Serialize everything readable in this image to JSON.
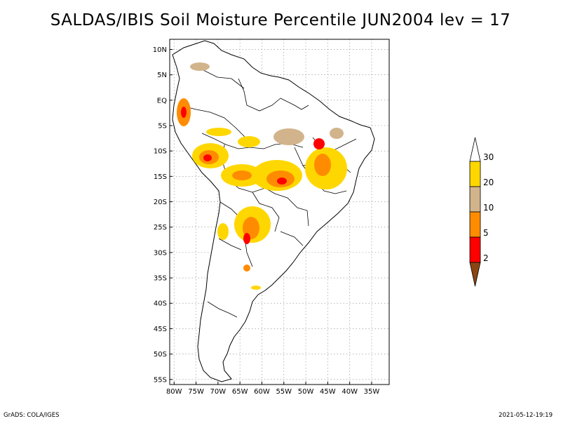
{
  "title": "SALDAS/IBIS Soil Moisture Percentile JUN2004 lev = 17",
  "map": {
    "lat_ticks": [
      {
        "value": 10,
        "label": "10N"
      },
      {
        "value": 5,
        "label": "5N"
      },
      {
        "value": 0,
        "label": "EQ"
      },
      {
        "value": -5,
        "label": "5S"
      },
      {
        "value": -10,
        "label": "10S"
      },
      {
        "value": -15,
        "label": "15S"
      },
      {
        "value": -20,
        "label": "20S"
      },
      {
        "value": -25,
        "label": "25S"
      },
      {
        "value": -30,
        "label": "30S"
      },
      {
        "value": -35,
        "label": "35S"
      },
      {
        "value": -40,
        "label": "40S"
      },
      {
        "value": -45,
        "label": "45S"
      },
      {
        "value": -50,
        "label": "50S"
      },
      {
        "value": -55,
        "label": "55S"
      }
    ],
    "lon_ticks": [
      {
        "value": -80,
        "label": "80W"
      },
      {
        "value": -75,
        "label": "75W"
      },
      {
        "value": -70,
        "label": "70W"
      },
      {
        "value": -65,
        "label": "65W"
      },
      {
        "value": -60,
        "label": "60W"
      },
      {
        "value": -55,
        "label": "55W"
      },
      {
        "value": -50,
        "label": "50W"
      },
      {
        "value": -45,
        "label": "45W"
      },
      {
        "value": -40,
        "label": "40W"
      },
      {
        "value": -35,
        "label": "35W"
      }
    ],
    "lat_range": [
      -56,
      12
    ],
    "lon_range": [
      -81,
      -31
    ],
    "grid": true
  },
  "colorbar": {
    "bins": [
      {
        "color": "#8B4513",
        "shape": "triangle-down",
        "label": ""
      },
      {
        "color": "#FF0000",
        "shape": "box",
        "label": "2"
      },
      {
        "color": "#FF8C00",
        "shape": "box",
        "label": "5"
      },
      {
        "color": "#D2B48C",
        "shape": "box",
        "label": "10"
      },
      {
        "color": "#FFD700",
        "shape": "box",
        "label": "20"
      },
      {
        "color": "#FFFFFF",
        "shape": "triangle-up",
        "label": "30"
      }
    ]
  },
  "footer": {
    "left": "GrADS: COLA/IGES",
    "right": "2021-05-12-19:19"
  }
}
